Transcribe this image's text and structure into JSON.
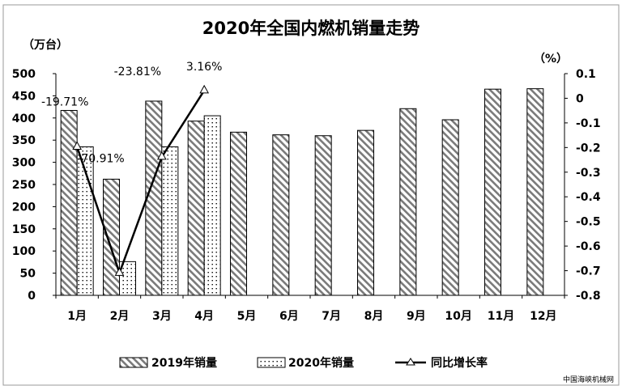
{
  "chart_data": {
    "type": "bar",
    "title": "2020年全国内燃机销量走势",
    "left_unit": "（万台）",
    "right_unit": "（%）",
    "categories": [
      "1月",
      "2月",
      "3月",
      "4月",
      "5月",
      "6月",
      "7月",
      "8月",
      "9月",
      "10月",
      "11月",
      "12月"
    ],
    "left_axis": {
      "ticks": [
        0,
        50,
        100,
        150,
        200,
        250,
        300,
        350,
        400,
        450,
        500
      ],
      "ylim": [
        0,
        500
      ]
    },
    "right_axis": {
      "ticks": [
        -0.8,
        -0.7,
        -0.6,
        -0.5,
        -0.4,
        -0.3,
        -0.2,
        -0.1,
        0,
        0.1
      ],
      "ylim": [
        -0.8,
        0.1
      ]
    },
    "series": [
      {
        "name": "2019年销量",
        "kind": "bar",
        "axis": "left",
        "pattern": "diagonal",
        "values": [
          417,
          262,
          438,
          393,
          368,
          362,
          360,
          372,
          421,
          396,
          465,
          466
        ]
      },
      {
        "name": "2020年销量",
        "kind": "bar",
        "axis": "left",
        "pattern": "dotted",
        "values": [
          335,
          76,
          335,
          405,
          null,
          null,
          null,
          null,
          null,
          null,
          null,
          null
        ]
      },
      {
        "name": "同比增长率",
        "kind": "line",
        "axis": "right",
        "marker": "triangle",
        "values": [
          -0.1971,
          -0.7091,
          -0.2381,
          0.0316,
          null,
          null,
          null,
          null,
          null,
          null,
          null,
          null
        ],
        "labels": [
          "-19.71%",
          "-70.91%",
          "-23.81%",
          "3.16%"
        ]
      }
    ],
    "grid": false,
    "legend_position": "bottom"
  },
  "watermark": "中国海峡机械网"
}
